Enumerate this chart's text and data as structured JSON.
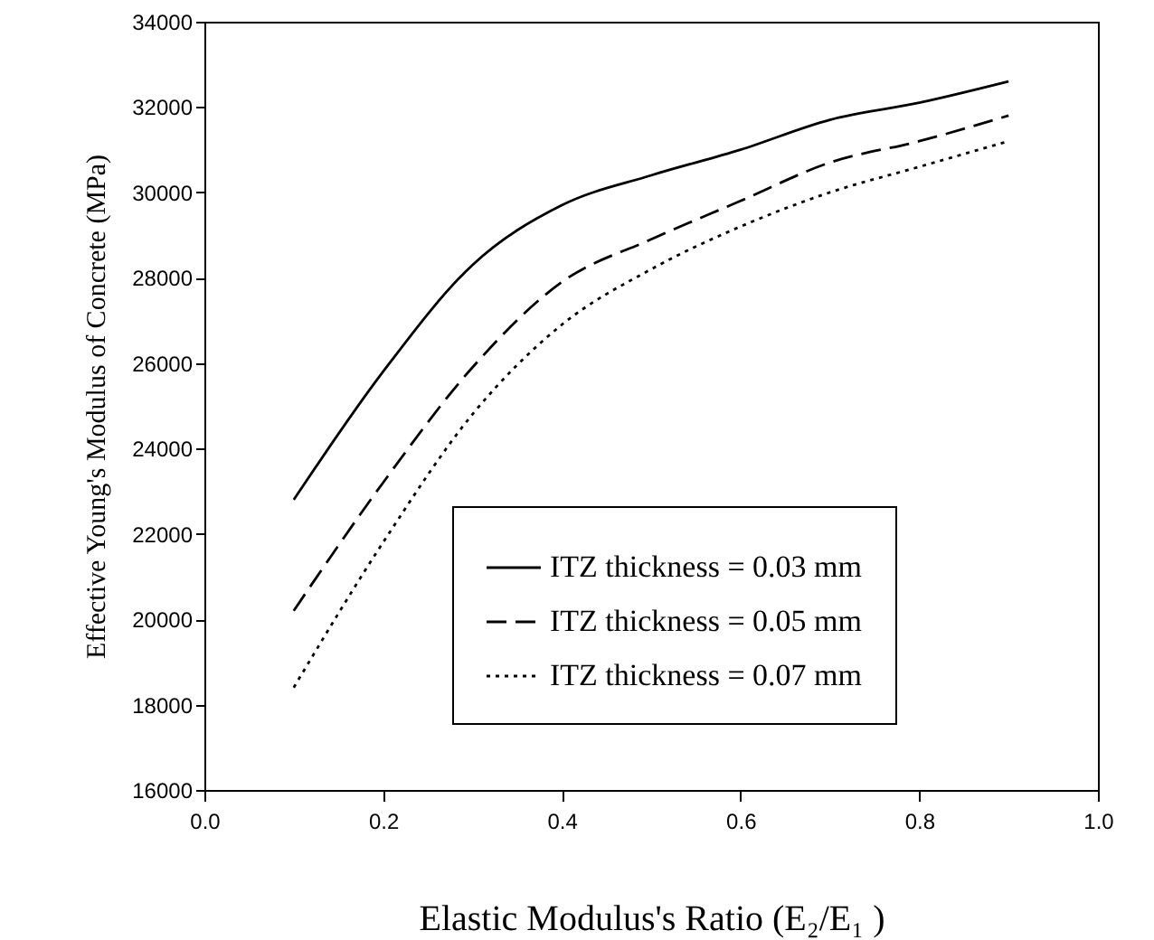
{
  "chart_data": {
    "type": "line",
    "xlabel": "Elastic Modulus's Ratio (E₂/E₁ )",
    "ylabel": "Effective Young's Modulus of Concrete (MPa)",
    "x": [
      0.1,
      0.2,
      0.3,
      0.4,
      0.5,
      0.6,
      0.7,
      0.8,
      0.9
    ],
    "series": [
      {
        "name": "ITZ thickness = 0.03 mm",
        "color": "#000000",
        "line_style": "solid",
        "values": [
          22800,
          25800,
          28300,
          29700,
          30400,
          31000,
          31700,
          32100,
          32600
        ]
      },
      {
        "name": "ITZ thickness = 0.05 mm",
        "color": "#000000",
        "line_style": "dashed",
        "values": [
          20200,
          23200,
          25900,
          27900,
          28900,
          29800,
          30700,
          31200,
          31800
        ]
      },
      {
        "name": "ITZ thickness = 0.07 mm",
        "color": "#000000",
        "line_style": "dotted",
        "values": [
          18400,
          21800,
          24800,
          26900,
          28200,
          29200,
          30000,
          30600,
          31200
        ]
      }
    ],
    "xlim": [
      0,
      1
    ],
    "xticks": [
      {
        "value": 0,
        "label": "0.0"
      },
      {
        "value": 0.2,
        "label": "0.2"
      },
      {
        "value": 0.4,
        "label": "0.4"
      },
      {
        "value": 0.6,
        "label": "0.6"
      },
      {
        "value": 0.8,
        "label": "0.8"
      },
      {
        "value": 1,
        "label": "1.0"
      }
    ],
    "ylim": [
      16000,
      34000
    ],
    "yticks": [
      16000,
      18000,
      20000,
      22000,
      24000,
      26000,
      28000,
      30000,
      32000,
      34000
    ],
    "grid": false,
    "legend": "bottom right",
    "marker": "none"
  }
}
